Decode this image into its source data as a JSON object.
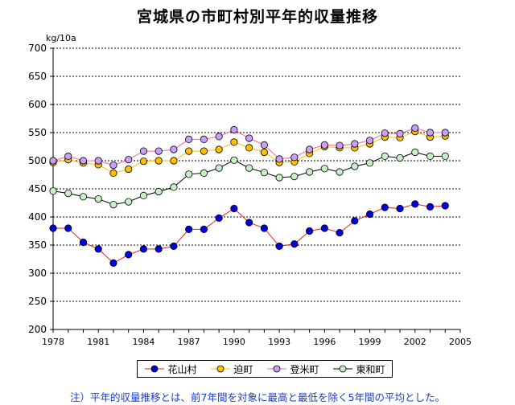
{
  "chart_data": {
    "type": "line",
    "title": "宮城県の市町村別平年的収量推移",
    "ylabel": "kg/10a",
    "xlabel": "",
    "ylim": [
      200,
      700
    ],
    "yticks": [
      200,
      250,
      300,
      350,
      400,
      450,
      500,
      550,
      600,
      650,
      700
    ],
    "xlim": [
      1978,
      2005
    ],
    "xticks": [
      1978,
      1981,
      1984,
      1987,
      1990,
      1993,
      1996,
      1999,
      2002,
      2005
    ],
    "grid": "horizontal-dotted",
    "legend_position": "bottom",
    "x": [
      1978,
      1979,
      1980,
      1981,
      1982,
      1983,
      1984,
      1985,
      1986,
      1987,
      1988,
      1989,
      1990,
      1991,
      1992,
      1993,
      1994,
      1995,
      1996,
      1997,
      1998,
      1999,
      2000,
      2001,
      2002,
      2003,
      2004
    ],
    "series": [
      {
        "name": "花山村",
        "color": "#0000dd",
        "line_color": "#e02020",
        "marker": "#0000dd",
        "values": [
          380,
          380,
          355,
          343,
          318,
          333,
          343,
          343,
          348,
          378,
          378,
          398,
          415,
          390,
          380,
          348,
          352,
          375,
          380,
          372,
          393,
          405,
          417,
          415,
          423,
          418,
          420
        ]
      },
      {
        "name": "迫町",
        "color": "#ffc000",
        "line_color": "#ffc000",
        "marker": "#ffc000",
        "values": [
          497,
          502,
          496,
          493,
          478,
          485,
          499,
          500,
          500,
          517,
          517,
          520,
          533,
          523,
          515,
          497,
          498,
          513,
          525,
          523,
          523,
          530,
          542,
          541,
          552,
          542,
          544
        ]
      },
      {
        "name": "登米町",
        "color": "#b890f0",
        "line_color": "#ff60a0",
        "marker": "#c8a0f8",
        "values": [
          500,
          508,
          500,
          500,
          492,
          502,
          517,
          517,
          520,
          538,
          538,
          543,
          555,
          540,
          528,
          503,
          506,
          520,
          528,
          527,
          530,
          536,
          549,
          548,
          558,
          550,
          550
        ]
      },
      {
        "name": "東和町",
        "color": "#c8f0c8",
        "line_color": "#000000",
        "marker": "#c8f0c8",
        "values": [
          446,
          442,
          436,
          432,
          422,
          427,
          438,
          445,
          453,
          476,
          478,
          487,
          501,
          487,
          479,
          470,
          472,
          480,
          486,
          480,
          490,
          496,
          508,
          505,
          515,
          508,
          508
        ]
      }
    ]
  },
  "footnote": "注）平年的収量推移とは、前7年間を対象に最高と最低を除く5年間の平均とした。"
}
